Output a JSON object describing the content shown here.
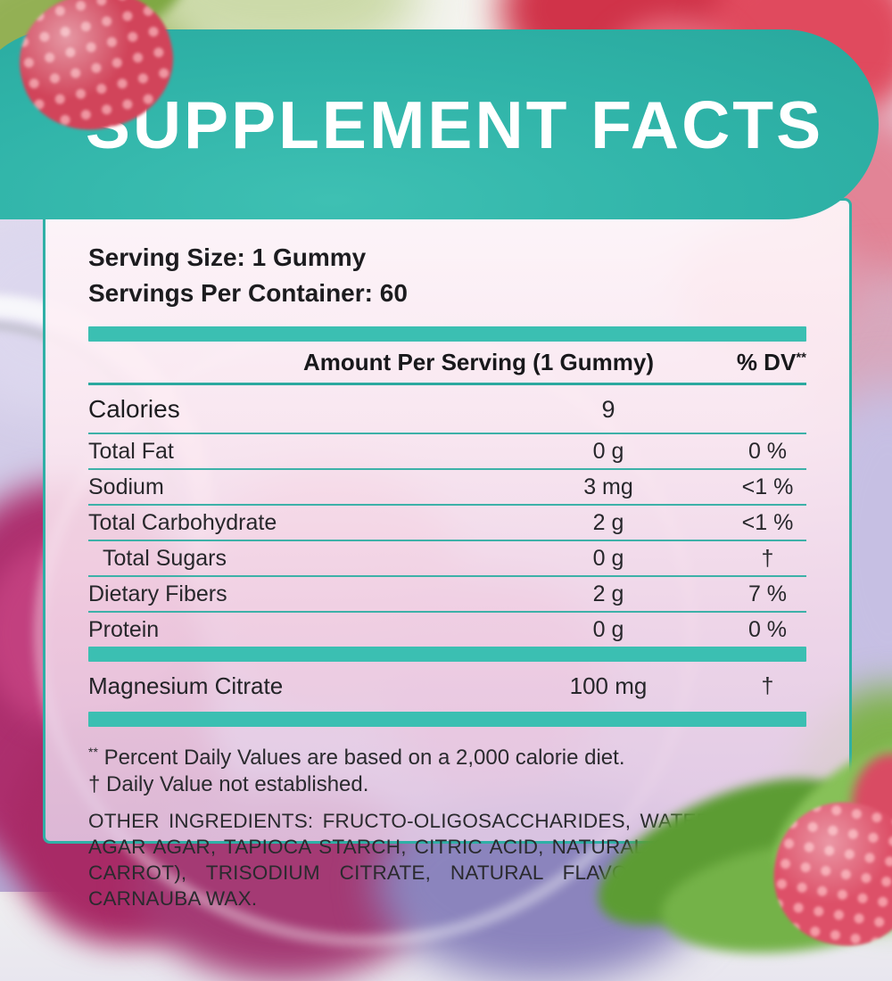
{
  "title": "SUPPLEMENT FACTS",
  "serving": {
    "size": "Serving Size: 1 Gummy",
    "per_container": "Servings Per Container: 60"
  },
  "table": {
    "header": {
      "amount": "Amount Per Serving (1 Gummy)",
      "dv": "% DV",
      "dv_sup": "**"
    },
    "calories": {
      "label": "Calories",
      "amount": "9",
      "dv": ""
    },
    "rows": [
      {
        "label": "Total Fat",
        "amount": "0 g",
        "dv": "0 %"
      },
      {
        "label": "Sodium",
        "amount": "3 mg",
        "dv": "<1 %"
      },
      {
        "label": "Total Carbohydrate",
        "amount": "2 g",
        "dv": "<1 %"
      },
      {
        "label": "Total Sugars",
        "amount": "0 g",
        "dv": "†"
      },
      {
        "label": "Dietary Fibers",
        "amount": "2 g",
        "dv": "7 %"
      },
      {
        "label": "Protein",
        "amount": "0 g",
        "dv": "0 %"
      }
    ],
    "supplement_row": {
      "label": "Magnesium Citrate",
      "amount": "100 mg",
      "dv": "†"
    }
  },
  "footnotes": {
    "dv_note_marker": "**",
    "dv_note": " Percent Daily Values are based on a 2,000 calorie diet.",
    "dagger_note": "† Daily Value not established."
  },
  "other_ingredients": {
    "label": "OTHER INGREDIENTS:",
    "text": " FRUCTO-OLIGOSACCHARIDES, WATER, PECTIN, AGAR AGAR, TAPIOCA STARCH, CITRIC ACID, NATURAL COLOR (BLACK CARROT), TRISODIUM CITRATE, NATURAL FLAVOR (RASPBERRY), CARNAUBA WAX."
  },
  "colors": {
    "teal_banner": "#2fb3a8",
    "teal_bar": "#3bbfb2",
    "teal_line": "#2ba99f",
    "text": "#232327",
    "panel_pink_top": "#fdf4f8",
    "panel_pink_bottom": "#e4ccE6"
  }
}
